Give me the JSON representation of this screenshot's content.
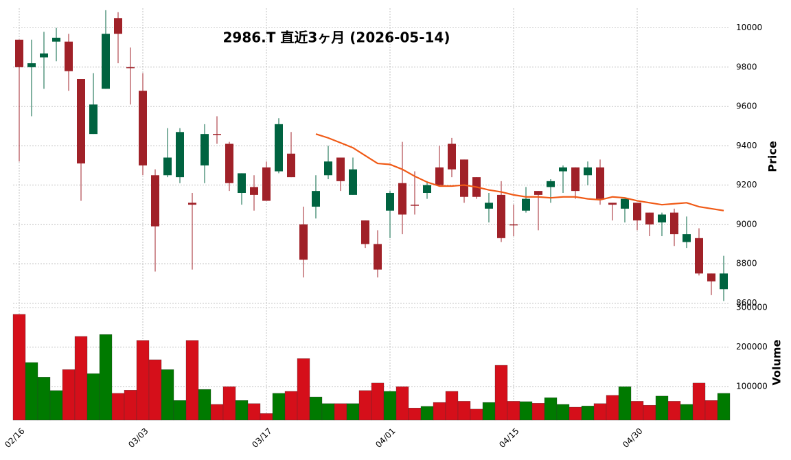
{
  "chart_data": {
    "type": "candlestick",
    "title": "2986.T  直近3ヶ月  (2026-05-14)",
    "categories": [
      "02/16",
      null,
      null,
      null,
      null,
      null,
      null,
      null,
      null,
      null,
      "03/03",
      null,
      null,
      null,
      null,
      null,
      null,
      null,
      null,
      null,
      "03/17",
      null,
      null,
      null,
      null,
      null,
      null,
      null,
      null,
      null,
      "04/01",
      null,
      null,
      null,
      null,
      null,
      null,
      null,
      null,
      null,
      "04/15",
      null,
      null,
      null,
      null,
      null,
      null,
      null,
      null,
      null,
      "04/30",
      null,
      null,
      null,
      null,
      null,
      null,
      null
    ],
    "open": [
      9940,
      9800,
      9850,
      9930,
      9930,
      9740,
      9460,
      9690,
      10050,
      9800,
      9680,
      9250,
      9250,
      9240,
      9110,
      9300,
      9460,
      9410,
      9160,
      9190,
      9290,
      9270,
      9360,
      9000,
      9090,
      9250,
      9340,
      9150,
      9020,
      8900,
      9070,
      9210,
      9100,
      9160,
      9290,
      9410,
      9330,
      9240,
      9080,
      9150,
      9000,
      9070,
      9170,
      9190,
      9270,
      9290,
      9250,
      9290,
      9110,
      9080,
      9110,
      9060,
      9010,
      9060,
      8910,
      8930,
      8750,
      8670
    ],
    "high": [
      9940,
      9940,
      9980,
      10000,
      9970,
      9740,
      9770,
      10090,
      10080,
      9900,
      9770,
      9280,
      9490,
      9490,
      9160,
      9510,
      9550,
      9420,
      9260,
      9250,
      9320,
      9540,
      9470,
      9090,
      9250,
      9400,
      9340,
      9340,
      9020,
      8970,
      9170,
      9420,
      9270,
      9220,
      9400,
      9440,
      9330,
      9240,
      9160,
      9220,
      9100,
      9190,
      9170,
      9230,
      9300,
      9290,
      9320,
      9330,
      9110,
      9130,
      9110,
      9060,
      9060,
      9080,
      9040,
      8980,
      8750,
      8840
    ],
    "low": [
      9320,
      9550,
      9690,
      9830,
      9680,
      9120,
      9460,
      9690,
      9820,
      9610,
      9250,
      8760,
      9240,
      9210,
      8770,
      9210,
      9410,
      9170,
      9100,
      9070,
      9120,
      9260,
      9240,
      8730,
      9030,
      9230,
      9170,
      9150,
      8880,
      8730,
      8930,
      8950,
      9050,
      9130,
      9200,
      9240,
      9110,
      9130,
      9010,
      8910,
      8940,
      9060,
      8970,
      9110,
      9160,
      9130,
      9200,
      9100,
      9020,
      9010,
      8970,
      8940,
      8940,
      8890,
      8880,
      8740,
      8640,
      8610
    ],
    "close": [
      9800,
      9820,
      9870,
      9950,
      9780,
      9310,
      9610,
      9970,
      9970,
      9795,
      9300,
      8990,
      9340,
      9470,
      9100,
      9460,
      9455,
      9210,
      9260,
      9150,
      9120,
      9510,
      9240,
      8820,
      9170,
      9320,
      9220,
      9280,
      8900,
      8770,
      9160,
      9050,
      9095,
      9200,
      9200,
      9280,
      9140,
      9140,
      9110,
      8930,
      8995,
      9130,
      9150,
      9220,
      9290,
      9170,
      9290,
      9130,
      9100,
      9130,
      9020,
      9000,
      9050,
      8950,
      8950,
      8750,
      8710,
      8750
    ],
    "up_color": "#006340",
    "down_color": "#a02128",
    "ylabel": "Price",
    "ylim": [
      8580,
      10100
    ],
    "yticks": [
      8600,
      8800,
      9000,
      9200,
      9400,
      9600,
      9800,
      10000
    ],
    "grid": true,
    "moving_average": {
      "color": "#f05a16",
      "values": [
        null,
        null,
        null,
        null,
        null,
        null,
        null,
        null,
        null,
        null,
        null,
        null,
        null,
        null,
        null,
        null,
        null,
        null,
        null,
        null,
        null,
        null,
        null,
        null,
        9460,
        9440,
        9415,
        9390,
        9350,
        9310,
        9305,
        9280,
        9245,
        9215,
        9195,
        9195,
        9200,
        9190,
        9175,
        9165,
        9150,
        9140,
        9140,
        9135,
        9140,
        9140,
        9130,
        9125,
        9140,
        9135,
        9120,
        9110,
        9100,
        9105,
        9110,
        9090,
        9080,
        9070
      ]
    },
    "volume": {
      "ylabel": "Volume",
      "up_color": "#007a00",
      "down_color": "#d50f1a",
      "ylim": [
        15000,
        300000
      ],
      "yticks": [
        100000,
        200000,
        300000
      ],
      "values": [
        283000,
        161000,
        124000,
        90000,
        143000,
        227000,
        133000,
        232000,
        83000,
        91000,
        217000,
        168000,
        143000,
        65000,
        217000,
        93000,
        55000,
        100000,
        65000,
        57000,
        32000,
        83000,
        88000,
        171000,
        74000,
        57000,
        57000,
        57000,
        90000,
        109000,
        88000,
        100000,
        46000,
        50000,
        60000,
        88000,
        63000,
        43000,
        60000,
        154000,
        63000,
        62000,
        58000,
        72000,
        55000,
        48000,
        51000,
        57000,
        78000,
        100000,
        63000,
        53000,
        76000,
        63000,
        55000,
        109000,
        65000,
        83000
      ]
    }
  }
}
